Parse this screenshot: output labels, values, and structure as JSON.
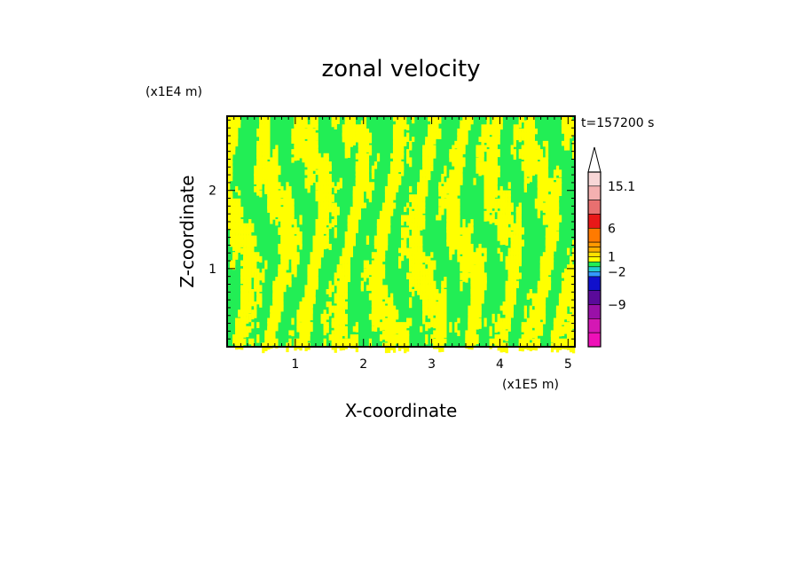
{
  "chart_data": {
    "type": "heatmap",
    "title": "zonal velocity",
    "xlabel": "X-coordinate",
    "ylabel": "Z-coordinate",
    "x_unit": "(x1E5 m)",
    "y_unit": "(x1E4 m)",
    "time_label": "t=157200 s",
    "xlim": [
      0,
      5.1
    ],
    "ylim": [
      0,
      2.95
    ],
    "x_ticks": [
      {
        "value": 1,
        "label": "1"
      },
      {
        "value": 2,
        "label": "2"
      },
      {
        "value": 3,
        "label": "3"
      },
      {
        "value": 4,
        "label": "4"
      },
      {
        "value": 5,
        "label": "5"
      }
    ],
    "y_ticks": [
      {
        "value": 1,
        "label": "1"
      },
      {
        "value": 2,
        "label": "2"
      }
    ],
    "field_colors": {
      "positive": "#ffff00",
      "negative": "#22ee55"
    },
    "colorbar": {
      "labeled_values": [
        {
          "value": 15.1,
          "label": "15.1"
        },
        {
          "value": 6,
          "label": "6"
        },
        {
          "value": 1,
          "label": "1"
        },
        {
          "value": -2,
          "label": "−2"
        },
        {
          "value": -9,
          "label": "−9"
        }
      ],
      "segments": [
        {
          "color": "#f7d6d6",
          "weight": 1.0,
          "label_index": null
        },
        {
          "color": "#f4b0b0",
          "weight": 1.0,
          "label_index": 0
        },
        {
          "color": "#e87070",
          "weight": 1.0,
          "label_index": null
        },
        {
          "color": "#e81818",
          "weight": 1.0,
          "label_index": null
        },
        {
          "color": "#ff7a00",
          "weight": 1.0,
          "label_index": 1
        },
        {
          "color": "#ff9900",
          "weight": 0.35,
          "label_index": null
        },
        {
          "color": "#ffb000",
          "weight": 0.35,
          "label_index": null
        },
        {
          "color": "#ffe000",
          "weight": 0.35,
          "label_index": null
        },
        {
          "color": "#ffff00",
          "weight": 0.35,
          "label_index": 2
        },
        {
          "color": "#22ee55",
          "weight": 0.35,
          "label_index": null
        },
        {
          "color": "#22cccc",
          "weight": 0.35,
          "label_index": null
        },
        {
          "color": "#3399ff",
          "weight": 0.35,
          "label_index": 3
        },
        {
          "color": "#1010cc",
          "weight": 1.0,
          "label_index": null
        },
        {
          "color": "#5a0a9a",
          "weight": 1.0,
          "label_index": null
        },
        {
          "color": "#9a10a8",
          "weight": 1.0,
          "label_index": 4
        },
        {
          "color": "#d418b4",
          "weight": 1.0,
          "label_index": null
        },
        {
          "color": "#ee10b8",
          "weight": 1.0,
          "label_index": null
        }
      ]
    }
  }
}
